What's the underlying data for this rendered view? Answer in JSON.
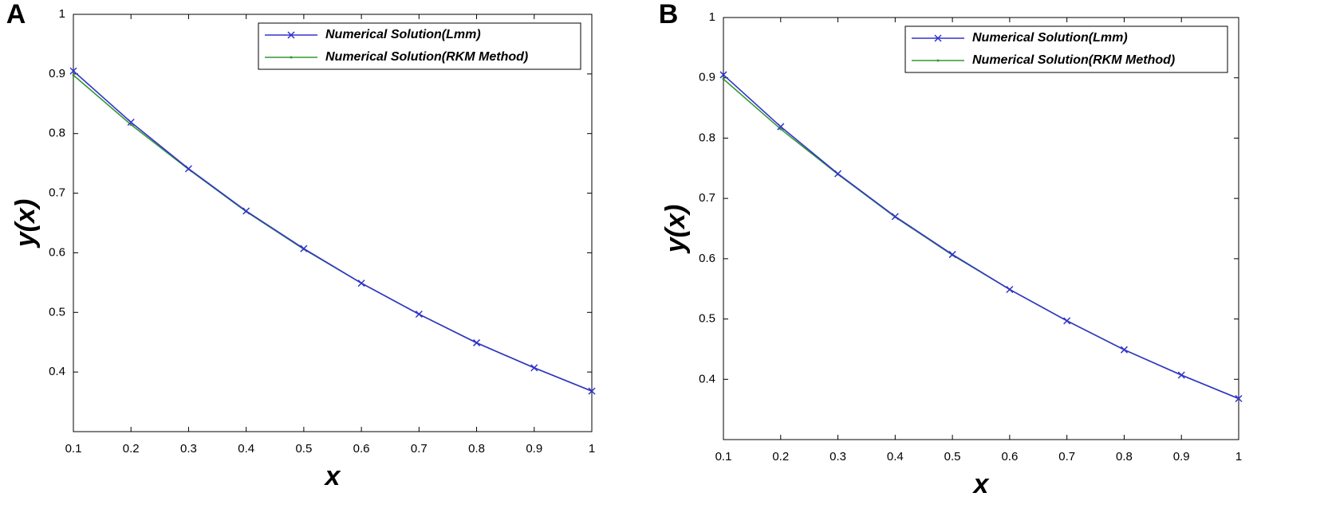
{
  "chart_data": [
    {
      "type": "line",
      "panel_label": "A",
      "xlabel": "x",
      "ylabel": "y(x)",
      "x": [
        0.1,
        0.2,
        0.3,
        0.4,
        0.5,
        0.6,
        0.7,
        0.8,
        0.9,
        1
      ],
      "series": [
        {
          "name": "Numerical Solution(Lmm)",
          "color": "#3333cc",
          "marker": "x",
          "values": [
            0.905,
            0.819,
            0.741,
            0.67,
            0.607,
            0.549,
            0.497,
            0.449,
            0.407,
            0.368
          ]
        },
        {
          "name": "Numerical Solution(RKM Method)",
          "color": "#339933",
          "marker": "dot",
          "values": [
            0.898,
            0.815,
            0.74,
            0.669,
            0.606,
            0.549,
            0.497,
            0.449,
            0.407,
            0.368
          ]
        }
      ],
      "xlim": [
        0.1,
        1
      ],
      "xticks": [
        0.1,
        0.2,
        0.3,
        0.4,
        0.5,
        0.6,
        0.7,
        0.8,
        0.9,
        1
      ],
      "ylim": [
        0.3,
        1
      ],
      "yticks": [
        0.4,
        0.5,
        0.6,
        0.7,
        0.8,
        0.9,
        1
      ],
      "legend": "upper right",
      "grid": false
    },
    {
      "type": "line",
      "panel_label": "B",
      "xlabel": "x",
      "ylabel": "y(x)",
      "x": [
        0.1,
        0.2,
        0.3,
        0.4,
        0.5,
        0.6,
        0.7,
        0.8,
        0.9,
        1
      ],
      "series": [
        {
          "name": "Numerical Solution(Lmm)",
          "color": "#3333cc",
          "marker": "x",
          "values": [
            0.905,
            0.819,
            0.741,
            0.67,
            0.607,
            0.549,
            0.497,
            0.449,
            0.407,
            0.368
          ]
        },
        {
          "name": "Numerical Solution(RKM Method)",
          "color": "#339933",
          "marker": "dot",
          "values": [
            0.898,
            0.815,
            0.74,
            0.669,
            0.606,
            0.549,
            0.497,
            0.449,
            0.407,
            0.368
          ]
        }
      ],
      "xlim": [
        0.1,
        1
      ],
      "xticks": [
        0.1,
        0.2,
        0.3,
        0.4,
        0.5,
        0.6,
        0.7,
        0.8,
        0.9,
        1
      ],
      "ylim": [
        0.3,
        1
      ],
      "yticks": [
        0.4,
        0.5,
        0.6,
        0.7,
        0.8,
        0.9,
        1
      ],
      "legend": "upper right",
      "grid": false
    }
  ]
}
